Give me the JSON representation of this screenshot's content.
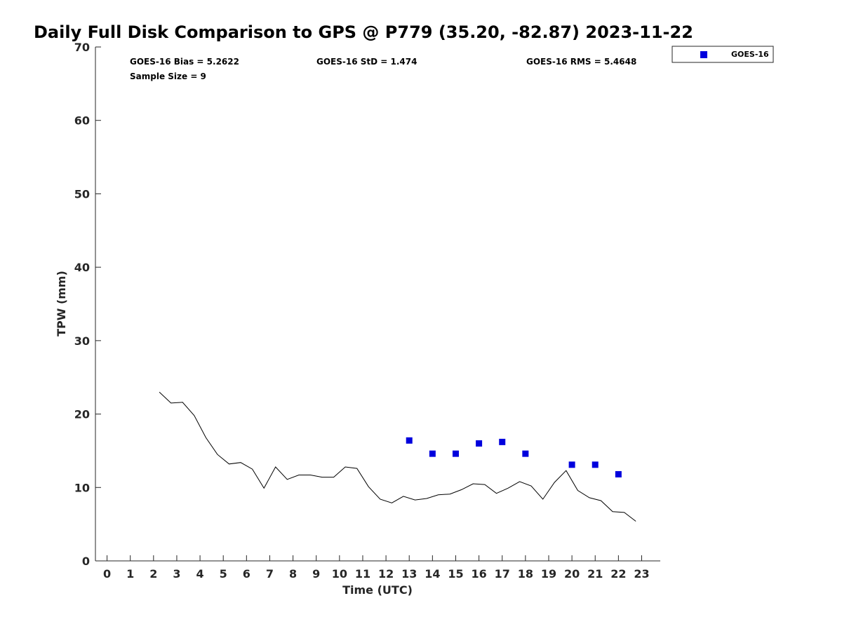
{
  "chart_data": {
    "type": "line",
    "title": "Daily Full Disk Comparison to GPS @ P779 (35.20, -82.87) 2023-11-22",
    "xlabel": "Time (UTC)",
    "ylabel": "TPW (mm)",
    "xlim": [
      -0.5,
      23.8
    ],
    "ylim": [
      0,
      70
    ],
    "x_ticks": [
      0,
      1,
      2,
      3,
      4,
      5,
      6,
      7,
      8,
      9,
      10,
      11,
      12,
      13,
      14,
      15,
      16,
      17,
      18,
      19,
      20,
      21,
      22,
      23
    ],
    "y_ticks": [
      0,
      10,
      20,
      30,
      40,
      50,
      60,
      70
    ],
    "grid": false,
    "legend_position": "top-right, outside plot",
    "stats": {
      "bias": "GOES-16 Bias = 5.2622",
      "std": "GOES-16 StD = 1.474",
      "rms": "GOES-16 RMS = 5.4648",
      "sample": "Sample Size = 9"
    },
    "series": [
      {
        "kind": "line",
        "color": "#000000",
        "x": [
          2.25,
          2.75,
          3.25,
          3.75,
          4.25,
          4.75,
          5.25,
          5.75,
          6.25,
          6.75,
          7.25,
          7.75,
          8.25,
          8.75,
          9.25,
          9.75,
          10.25,
          10.75,
          11.25,
          11.75,
          12.25,
          12.75,
          13.25,
          13.75,
          14.25,
          14.75,
          15.25,
          15.75,
          16.25,
          16.75,
          17.25,
          17.75,
          18.25,
          18.75,
          19.25,
          19.75,
          20.25,
          20.75,
          21.25,
          21.75,
          22.25,
          22.75
        ],
        "y": [
          23.0,
          21.5,
          21.6,
          19.8,
          16.8,
          14.5,
          13.2,
          13.4,
          12.5,
          9.9,
          12.8,
          11.1,
          11.7,
          11.7,
          11.4,
          11.4,
          12.8,
          12.6,
          10.1,
          8.4,
          7.9,
          8.8,
          8.3,
          8.5,
          9.0,
          9.1,
          9.7,
          10.5,
          10.4,
          9.2,
          9.9,
          10.8,
          10.2,
          8.4,
          10.7,
          12.3,
          9.6,
          8.6,
          8.2,
          6.7,
          6.6,
          5.4
        ]
      },
      {
        "kind": "scatter",
        "name": "GOES-16",
        "color": "#0000dd",
        "x": [
          13,
          14,
          15,
          16,
          17,
          18,
          20,
          21,
          22
        ],
        "y": [
          16.4,
          14.6,
          14.6,
          16.0,
          16.2,
          14.6,
          13.1,
          13.1,
          11.8
        ]
      }
    ]
  }
}
